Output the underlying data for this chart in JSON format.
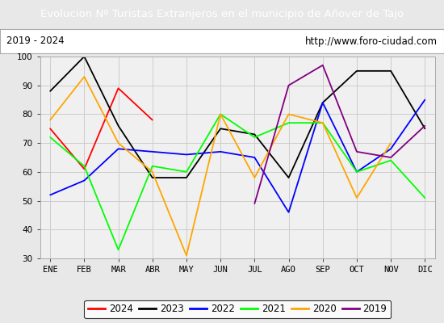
{
  "title": "Evolucion Nº Turistas Extranjeros en el municipio de Añover de Tajo",
  "subtitle_left": "2019 - 2024",
  "subtitle_right": "http://www.foro-ciudad.com",
  "title_bg_color": "#4472c4",
  "title_text_color": "#ffffff",
  "months": [
    "ENE",
    "FEB",
    "MAR",
    "ABR",
    "MAY",
    "JUN",
    "JUL",
    "AGO",
    "SEP",
    "OCT",
    "NOV",
    "DIC"
  ],
  "ylim": [
    30,
    100
  ],
  "yticks": [
    30,
    40,
    50,
    60,
    70,
    80,
    90,
    100
  ],
  "series": {
    "2024": {
      "color": "red",
      "values": [
        75,
        61,
        89,
        78,
        null,
        null,
        null,
        null,
        null,
        null,
        null,
        null
      ]
    },
    "2023": {
      "color": "black",
      "values": [
        88,
        100,
        76,
        58,
        58,
        75,
        73,
        58,
        84,
        95,
        95,
        75
      ]
    },
    "2022": {
      "color": "blue",
      "values": [
        52,
        57,
        68,
        67,
        66,
        67,
        65,
        46,
        84,
        60,
        68,
        85
      ]
    },
    "2021": {
      "color": "lime",
      "values": [
        72,
        62,
        33,
        62,
        60,
        80,
        72,
        77,
        77,
        60,
        64,
        51
      ]
    },
    "2020": {
      "color": "orange",
      "values": [
        78,
        93,
        70,
        60,
        31,
        80,
        58,
        80,
        77,
        51,
        70,
        null
      ]
    },
    "2019": {
      "color": "purple",
      "values": [
        null,
        null,
        null,
        null,
        null,
        null,
        49,
        90,
        97,
        67,
        65,
        76
      ]
    }
  },
  "legend_order": [
    "2024",
    "2023",
    "2022",
    "2021",
    "2020",
    "2019"
  ],
  "grid_color": "#cccccc",
  "bg_color": "#e8e8e8",
  "plot_bg_color": "#f0f0f0",
  "subtitle_bg": "#ffffff",
  "border_color": "#4472c4"
}
